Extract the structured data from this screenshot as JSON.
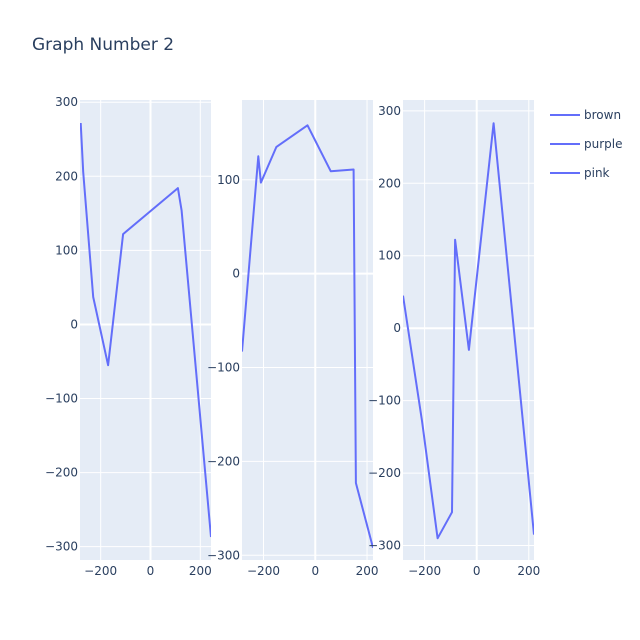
{
  "chart_title": "Graph Number 2",
  "colors": {
    "background": "#ffffff",
    "plot_bg": "#e5ecf6",
    "grid": "#ffffff",
    "line": "#636efa",
    "text": "#2a3f5f"
  },
  "legend": {
    "placement": "right",
    "items": [
      "brown",
      "purple",
      "pink"
    ]
  },
  "chart_data": [
    {
      "type": "line",
      "name": "brown",
      "x": [
        -280,
        -270,
        -230,
        -170,
        -110,
        110,
        125,
        243
      ],
      "y": [
        272,
        206,
        37,
        -55,
        122,
        184,
        154,
        -287
      ],
      "xlim": [
        -283,
        243
      ],
      "ylim": [
        -318,
        303
      ],
      "x_ticks": [
        -200,
        0,
        200
      ],
      "x_tick_labels": [
        "−200",
        "0",
        "200"
      ],
      "y_ticks": [
        300,
        200,
        100,
        0,
        -100,
        -200,
        -300
      ],
      "y_tick_labels": [
        "300",
        "200",
        "100",
        "0",
        "−100",
        "−200",
        "−300"
      ],
      "grid": true
    },
    {
      "type": "line",
      "name": "purple",
      "x": [
        -283,
        -220,
        -210,
        -150,
        -30,
        60,
        148,
        157,
        223
      ],
      "y": [
        -83,
        125,
        97,
        135,
        158,
        109,
        111,
        -223,
        -292
      ],
      "xlim": [
        -283,
        223
      ],
      "ylim": [
        -305,
        185
      ],
      "x_ticks": [
        -200,
        0,
        200
      ],
      "x_tick_labels": [
        "−200",
        "0",
        "200"
      ],
      "y_ticks": [
        100,
        0,
        -100,
        -200,
        -300
      ],
      "y_tick_labels": [
        "100",
        "0",
        "−100",
        "−200",
        "−300"
      ],
      "grid": true
    },
    {
      "type": "line",
      "name": "pink",
      "x": [
        -283,
        -210,
        -150,
        -95,
        -83,
        -30,
        65,
        220
      ],
      "y": [
        45,
        -128,
        -290,
        -254,
        122,
        -30,
        283,
        -285
      ],
      "xlim": [
        -283,
        220
      ],
      "ylim": [
        -320,
        315
      ],
      "x_ticks": [
        -200,
        0,
        200
      ],
      "x_tick_labels": [
        "−200",
        "0",
        "200"
      ],
      "y_ticks": [
        300,
        200,
        100,
        0,
        -100,
        -200,
        -300
      ],
      "y_tick_labels": [
        "300",
        "200",
        "100",
        "0",
        "−100",
        "−200",
        "−300"
      ],
      "grid": true
    }
  ]
}
